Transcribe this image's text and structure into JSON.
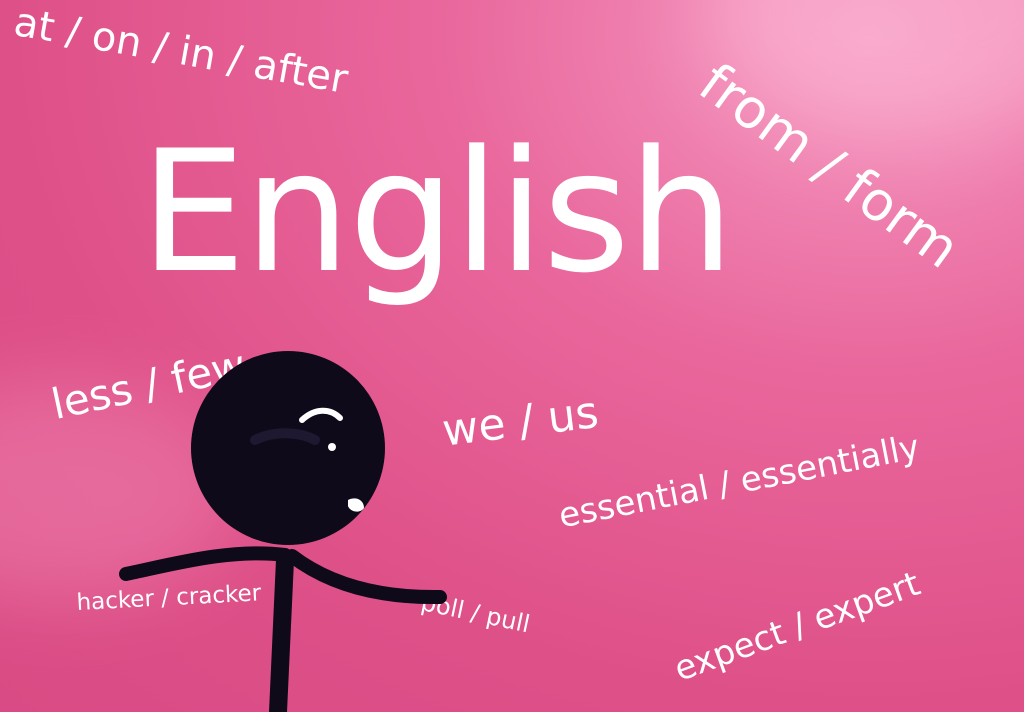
{
  "title": "English",
  "word_pairs": {
    "at_on_in_after": "at / on / in / after",
    "from_form": "from / form",
    "less_few": "less / few",
    "we_us": "we / us",
    "essential_essentially": "essential / essentially",
    "hacker_cracker": "hacker / cracker",
    "poll_pull": "poll / pull",
    "expect_expert": "expect / expert"
  },
  "colors": {
    "background": "#e05a8f",
    "background_light": "#f59ac2",
    "text": "#ffffff",
    "figure": "#0e0a1a"
  },
  "figure": {
    "description_icon": "stick-figure-icon"
  }
}
